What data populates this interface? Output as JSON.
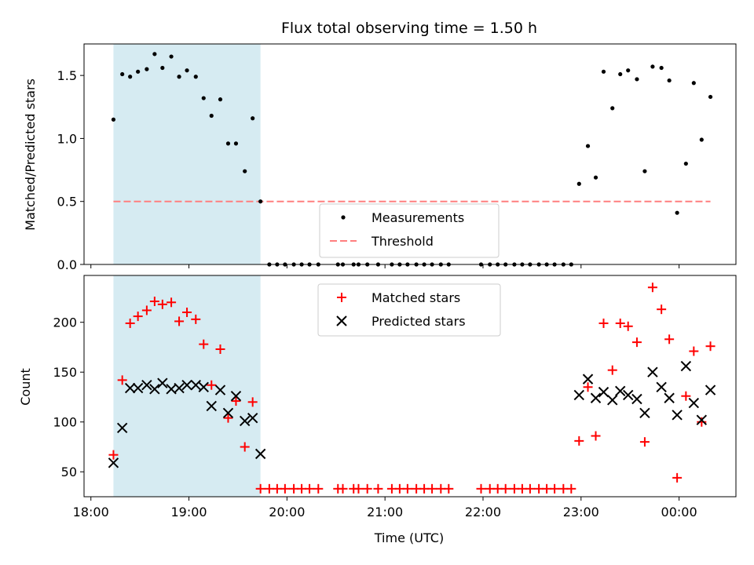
{
  "title": "Flux total observing time = 1.50 h",
  "top_ylabel": "Matched/Predicted stars",
  "bottom_ylabel": "Count",
  "xlabel": "Time (UTC)",
  "colors": {
    "shade": "#add8e6",
    "matched": "#ff0000",
    "predicted": "#000000",
    "threshold": "#ff7f7f",
    "measurements": "#000000"
  },
  "chart_data": [
    {
      "type": "scatter",
      "panel": "top",
      "title": "Flux total observing time = 1.50 h",
      "ylabel": "Matched/Predicted stars",
      "ylim": [
        0,
        1.75
      ],
      "xlim": [
        17.93,
        24.58
      ],
      "yticks": [
        0.0,
        0.5,
        1.0,
        1.5
      ],
      "ytick_labels": [
        "0.0",
        "0.5",
        "1.0",
        "1.5"
      ],
      "shaded_interval": [
        18.23,
        19.73
      ],
      "threshold": {
        "name": "Threshold",
        "y": 0.5,
        "x_range": [
          18.23,
          24.32
        ]
      },
      "legend": [
        "Measurements",
        "Threshold"
      ],
      "legend_position": "lower center",
      "series": [
        {
          "name": "Measurements",
          "x": [
            18.23,
            18.32,
            18.4,
            18.48,
            18.57,
            18.65,
            18.73,
            18.82,
            18.9,
            18.98,
            19.07,
            19.15,
            19.23,
            19.32,
            19.4,
            19.48,
            19.57,
            19.65,
            19.73,
            19.82,
            19.9,
            19.98,
            20.07,
            20.15,
            20.23,
            20.32,
            20.52,
            20.57,
            20.68,
            20.73,
            20.82,
            20.93,
            21.07,
            21.15,
            21.23,
            21.32,
            21.4,
            21.48,
            21.57,
            21.65,
            21.98,
            22.07,
            22.15,
            22.23,
            22.32,
            22.4,
            22.48,
            22.57,
            22.65,
            22.73,
            22.82,
            22.9,
            22.98,
            23.07,
            23.15,
            23.23,
            23.32,
            23.4,
            23.48,
            23.57,
            23.65,
            23.73,
            23.82,
            23.9,
            23.98,
            24.07,
            24.15,
            24.23,
            24.32
          ],
          "y": [
            1.15,
            1.51,
            1.49,
            1.53,
            1.55,
            1.67,
            1.56,
            1.65,
            1.49,
            1.54,
            1.49,
            1.32,
            1.18,
            1.31,
            0.96,
            0.96,
            0.74,
            1.16,
            0.5,
            0,
            0,
            0,
            0,
            0,
            0,
            0,
            0,
            0,
            0,
            0,
            0,
            0,
            0,
            0,
            0,
            0,
            0,
            0,
            0,
            0,
            0,
            0,
            0,
            0,
            0,
            0,
            0,
            0,
            0,
            0,
            0,
            0,
            0.64,
            0.94,
            0.69,
            1.53,
            1.24,
            1.51,
            1.54,
            1.47,
            0.74,
            1.57,
            1.56,
            1.46,
            0.41,
            0.8,
            1.44,
            0.99,
            1.33
          ]
        }
      ]
    },
    {
      "type": "scatter",
      "panel": "bottom",
      "xlabel": "Time (UTC)",
      "ylabel": "Count",
      "ylim": [
        25,
        247
      ],
      "xlim": [
        17.93,
        24.58
      ],
      "yticks": [
        50,
        100,
        150,
        200
      ],
      "ytick_labels": [
        "50",
        "100",
        "150",
        "200"
      ],
      "xticks": [
        18,
        19,
        20,
        21,
        22,
        23,
        24
      ],
      "xtick_labels": [
        "18:00",
        "19:00",
        "20:00",
        "21:00",
        "22:00",
        "23:00",
        "00:00"
      ],
      "shaded_interval": [
        18.23,
        19.73
      ],
      "legend": [
        "Matched stars",
        "Predicted stars"
      ],
      "legend_position": "upper center",
      "series": [
        {
          "name": "Matched stars",
          "x": [
            18.23,
            18.32,
            18.4,
            18.48,
            18.57,
            18.65,
            18.73,
            18.82,
            18.9,
            18.98,
            19.07,
            19.15,
            19.23,
            19.32,
            19.4,
            19.48,
            19.57,
            19.65,
            19.73,
            19.82,
            19.9,
            19.98,
            20.07,
            20.15,
            20.23,
            20.32,
            20.52,
            20.57,
            20.68,
            20.73,
            20.82,
            20.93,
            21.07,
            21.15,
            21.23,
            21.32,
            21.4,
            21.48,
            21.57,
            21.65,
            21.98,
            22.07,
            22.15,
            22.23,
            22.32,
            22.4,
            22.48,
            22.57,
            22.65,
            22.73,
            22.82,
            22.9,
            22.98,
            23.07,
            23.15,
            23.23,
            23.32,
            23.4,
            23.48,
            23.57,
            23.65,
            23.73,
            23.82,
            23.9,
            23.98,
            24.07,
            24.15,
            24.23,
            24.32
          ],
          "y": [
            67,
            142,
            199,
            206,
            212,
            221,
            218,
            220,
            201,
            210,
            203,
            178,
            137,
            173,
            104,
            121,
            75,
            120,
            33,
            33,
            33,
            33,
            33,
            33,
            33,
            33,
            33,
            33,
            33,
            33,
            33,
            33,
            33,
            33,
            33,
            33,
            33,
            33,
            33,
            33,
            33,
            33,
            33,
            33,
            33,
            33,
            33,
            33,
            33,
            33,
            33,
            33,
            81,
            135,
            86,
            199,
            152,
            199,
            196,
            180,
            80,
            235,
            213,
            183,
            44,
            126,
            171,
            100,
            176
          ]
        },
        {
          "name": "Predicted stars",
          "x": [
            18.23,
            18.32,
            18.4,
            18.48,
            18.57,
            18.65,
            18.73,
            18.82,
            18.9,
            18.98,
            19.07,
            19.15,
            19.23,
            19.32,
            19.4,
            19.48,
            19.57,
            19.65,
            19.73,
            22.98,
            23.07,
            23.15,
            23.23,
            23.32,
            23.4,
            23.48,
            23.57,
            23.65,
            23.73,
            23.82,
            23.9,
            23.98,
            24.07,
            24.15,
            24.23,
            24.32
          ],
          "y": [
            59,
            94,
            134,
            134,
            137,
            133,
            139,
            133,
            134,
            137,
            137,
            135,
            116,
            132,
            109,
            126,
            101,
            104,
            68,
            127,
            143,
            124,
            130,
            122,
            131,
            127,
            123,
            109,
            150,
            135,
            124,
            107,
            156,
            119,
            102,
            132
          ]
        }
      ]
    }
  ]
}
